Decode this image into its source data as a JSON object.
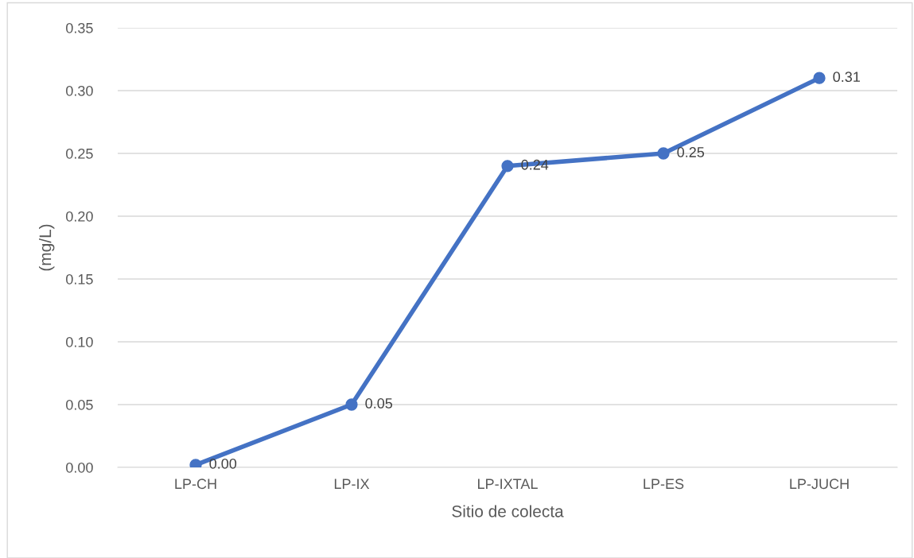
{
  "chart_data": {
    "type": "line",
    "xlabel": "Sitio de colecta",
    "ylabel": "(mg/L)",
    "categories": [
      "LP-CH",
      "LP-IX",
      "LP-IXTAL",
      "LP-ES",
      "LP-JUCH"
    ],
    "series": [
      {
        "color": "#4472c4",
        "values": [
          0.002,
          0.05,
          0.24,
          0.25,
          0.31
        ],
        "value_labels": [
          "0.00",
          "0.05",
          "0.24",
          "0.25",
          "0.31"
        ]
      }
    ],
    "ylim": [
      0,
      0.35
    ],
    "yticks": [
      {
        "value": 0,
        "label": "0.00"
      },
      {
        "value": 0.05,
        "label": "0.05"
      },
      {
        "value": 0.1,
        "label": "0.10"
      },
      {
        "value": 0.15,
        "label": "0.15"
      },
      {
        "value": 0.2,
        "label": "0.20"
      },
      {
        "value": 0.25,
        "label": "0.25"
      },
      {
        "value": 0.3,
        "label": "0.30"
      },
      {
        "value": 0.35,
        "label": "0.35"
      }
    ],
    "grid": "y",
    "legend": false,
    "marker": "circle",
    "line_style": "solid"
  }
}
